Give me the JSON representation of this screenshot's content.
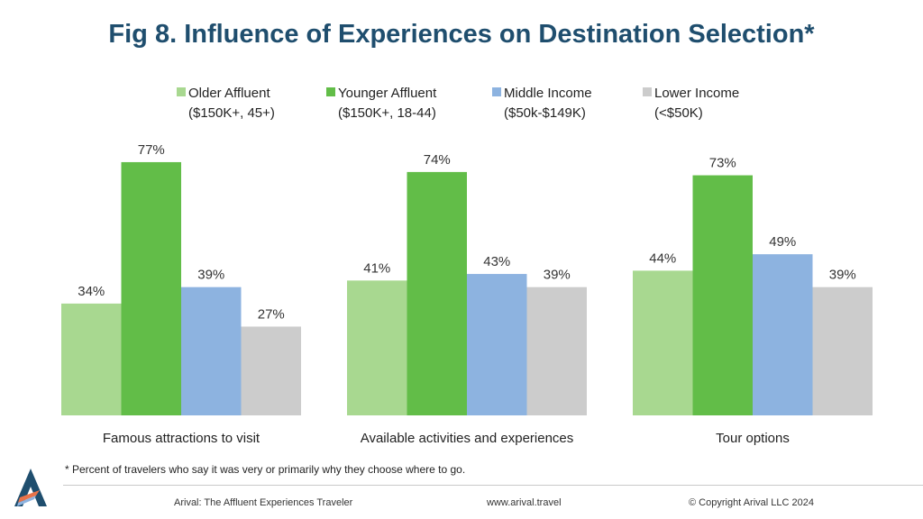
{
  "title": "Fig 8. Influence of Experiences on Destination Selection*",
  "chart_data": {
    "type": "bar",
    "title": "Fig 8. Influence of Experiences on Destination Selection*",
    "categories": [
      "Famous attractions to visit",
      "Available activities and experiences",
      "Tour options"
    ],
    "series": [
      {
        "name": "Older Affluent",
        "sublabel": "($150K+, 45+)",
        "color": "#a8d890",
        "values": [
          34,
          41,
          44
        ],
        "labels": [
          "34%",
          "41%",
          "44%"
        ]
      },
      {
        "name": "Younger Affluent",
        "sublabel": "($150K+, 18-44)",
        "color": "#62bd48",
        "values": [
          77,
          74,
          73
        ],
        "labels": [
          "77%",
          "74%",
          "73%"
        ]
      },
      {
        "name": "Middle Income",
        "sublabel": "($50k-$149K)",
        "color": "#8db3e0",
        "values": [
          39,
          43,
          49
        ],
        "labels": [
          "39%",
          "43%",
          "49%"
        ]
      },
      {
        "name": "Lower Income",
        "sublabel": "(<$50K)",
        "color": "#cccccc",
        "values": [
          27,
          39,
          39
        ],
        "labels": [
          "27%",
          "39%",
          "39%"
        ]
      }
    ],
    "ylim": [
      0,
      100
    ],
    "grid": false,
    "legend_position": "top"
  },
  "footnote": "* Percent of travelers who say it was very or primarily why they choose where to go.",
  "footer": {
    "left": "Arival: The  Affluent Experiences Traveler",
    "center": "www.arival.travel",
    "right": "© Copyright Arival LLC 2024"
  },
  "logo": {
    "icon": "arival-logo-icon",
    "colors": [
      "#1f4e6e",
      "#e8734a",
      "#8db3e0"
    ]
  }
}
